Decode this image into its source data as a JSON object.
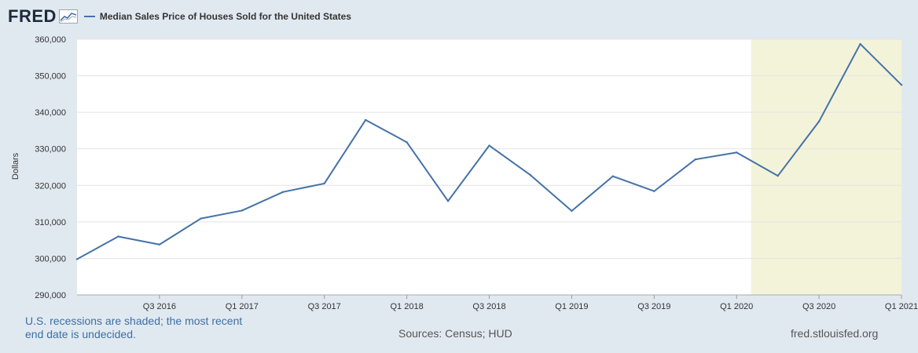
{
  "header": {
    "logo_text": "FRED",
    "logo_mark": "fred-graph-icon"
  },
  "chart_data": {
    "type": "line",
    "title": "Median Sales Price of Houses Sold for the United States",
    "ylabel": "Dollars",
    "xlabel": "",
    "ylim": [
      290000,
      360000
    ],
    "y_ticks": [
      290000,
      300000,
      310000,
      320000,
      330000,
      340000,
      350000,
      360000
    ],
    "y_tick_labels": [
      "290,000",
      "300,000",
      "310,000",
      "320,000",
      "330,000",
      "340,000",
      "350,000",
      "360,000"
    ],
    "x": [
      "2016 Q1",
      "2016 Q2",
      "2016 Q3",
      "2016 Q4",
      "2017 Q1",
      "2017 Q2",
      "2017 Q3",
      "2017 Q4",
      "2018 Q1",
      "2018 Q2",
      "2018 Q3",
      "2018 Q4",
      "2019 Q1",
      "2019 Q2",
      "2019 Q3",
      "2019 Q4",
      "2020 Q1",
      "2020 Q2",
      "2020 Q3",
      "2020 Q4",
      "2021 Q1"
    ],
    "x_tick_labels": [
      {
        "index": 2,
        "label": "Q3 2016"
      },
      {
        "index": 4,
        "label": "Q1 2017"
      },
      {
        "index": 6,
        "label": "Q3 2017"
      },
      {
        "index": 8,
        "label": "Q1 2018"
      },
      {
        "index": 10,
        "label": "Q3 2018"
      },
      {
        "index": 12,
        "label": "Q1 2019"
      },
      {
        "index": 14,
        "label": "Q3 2019"
      },
      {
        "index": 16,
        "label": "Q1 2020"
      },
      {
        "index": 18,
        "label": "Q3 2020"
      },
      {
        "index": 20,
        "label": "Q1 2021"
      }
    ],
    "series": [
      {
        "name": "Median Sales Price of Houses Sold for the United States",
        "color": "#4572a7",
        "values": [
          299800,
          306000,
          303800,
          310900,
          313100,
          318200,
          320500,
          337900,
          331800,
          315700,
          330900,
          322800,
          313000,
          322500,
          318400,
          327100,
          329000,
          322600,
          337500,
          358700,
          347500
        ]
      }
    ],
    "recession_shading": {
      "start_index": 16.35,
      "end_index": 20,
      "color": "#f3f3da"
    },
    "grid": true
  },
  "footer": {
    "recession_note_line1": "U.S. recessions are shaded; the most recent",
    "recession_note_line2": "end date is undecided.",
    "sources": "Sources: Census; HUD",
    "site": "fred.stlouisfed.org"
  }
}
